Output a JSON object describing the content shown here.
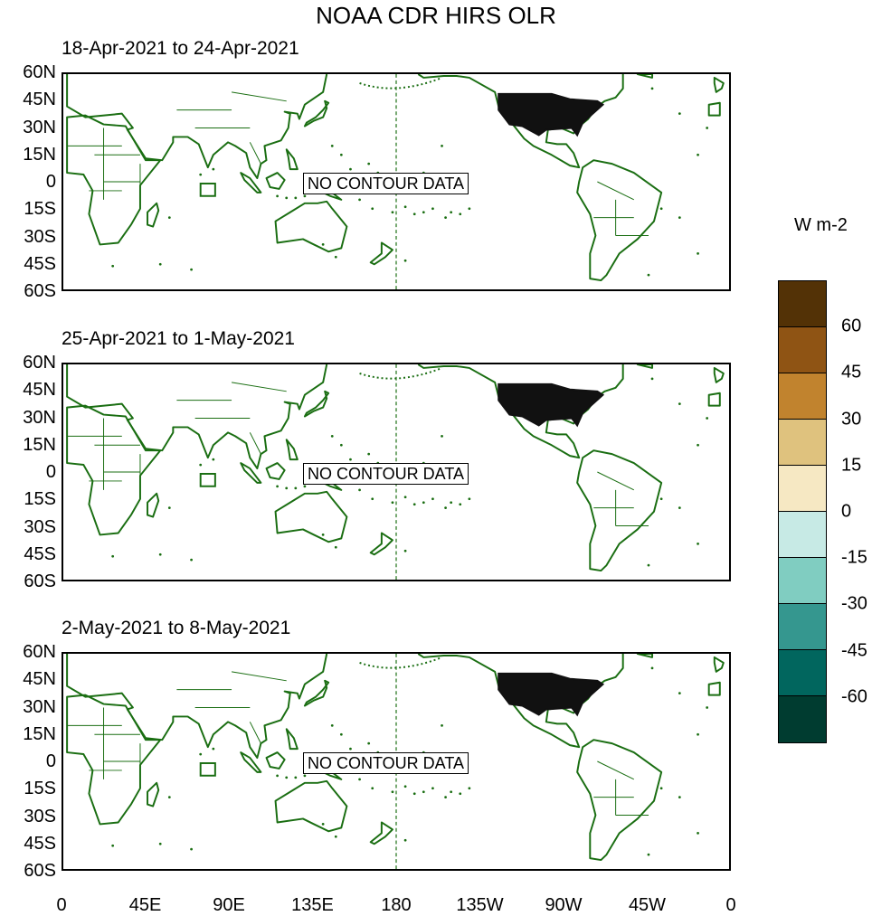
{
  "title": "NOAA CDR HIRS OLR",
  "panels": [
    {
      "period": "18-Apr-2021 to 24-Apr-2021",
      "note": "NO CONTOUR DATA"
    },
    {
      "period": "25-Apr-2021 to 1-May-2021",
      "note": "NO CONTOUR DATA"
    },
    {
      "period": "2-May-2021 to 8-May-2021",
      "note": "NO CONTOUR DATA"
    }
  ],
  "y_axis_labels": [
    "60N",
    "45N",
    "30N",
    "15N",
    "0",
    "15S",
    "30S",
    "45S",
    "60S"
  ],
  "x_axis_labels": [
    "0",
    "45E",
    "90E",
    "135E",
    "180",
    "135W",
    "90W",
    "45W",
    "0"
  ],
  "legend": {
    "units": "W m-2",
    "labels": [
      "60",
      "45",
      "30",
      "15",
      "0",
      "-15",
      "-30",
      "-45",
      "-60"
    ],
    "colors": [
      "#533206",
      "#8f5414",
      "#c1832e",
      "#dfc27e",
      "#f6e8c3",
      "#c7eae5",
      "#80cdc1",
      "#35978f",
      "#01665e",
      "#003c30"
    ]
  },
  "map_colors": {
    "coast": "#1a6e12",
    "usa_fill": "#111111"
  }
}
